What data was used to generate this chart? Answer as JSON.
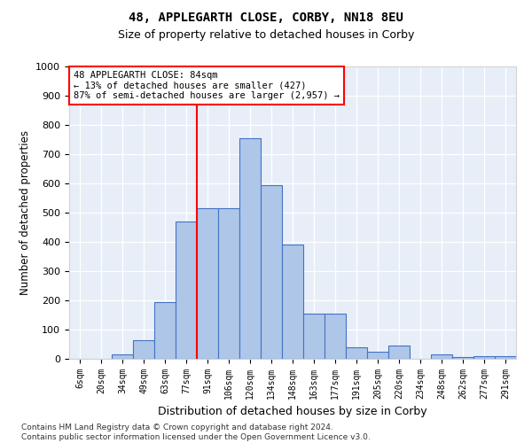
{
  "title1": "48, APPLEGARTH CLOSE, CORBY, NN18 8EU",
  "title2": "Size of property relative to detached houses in Corby",
  "xlabel": "Distribution of detached houses by size in Corby",
  "ylabel": "Number of detached properties",
  "footnote": "Contains HM Land Registry data © Crown copyright and database right 2024.\nContains public sector information licensed under the Open Government Licence v3.0.",
  "categories": [
    "6sqm",
    "20sqm",
    "34sqm",
    "49sqm",
    "63sqm",
    "77sqm",
    "91sqm",
    "106sqm",
    "120sqm",
    "134sqm",
    "148sqm",
    "163sqm",
    "177sqm",
    "191sqm",
    "205sqm",
    "220sqm",
    "234sqm",
    "248sqm",
    "262sqm",
    "277sqm",
    "291sqm"
  ],
  "values": [
    0,
    0,
    15,
    65,
    195,
    470,
    515,
    515,
    755,
    595,
    390,
    155,
    155,
    40,
    25,
    45,
    0,
    15,
    5,
    10,
    10
  ],
  "bar_color": "#aec6e8",
  "bar_edge_color": "#4472c4",
  "bg_color": "#e8eef8",
  "annotation_text": "48 APPLEGARTH CLOSE: 84sqm\n← 13% of detached houses are smaller (427)\n87% of semi-detached houses are larger (2,957) →",
  "vline_x": 5.5,
  "ylim": [
    0,
    1000
  ],
  "yticks": [
    0,
    100,
    200,
    300,
    400,
    500,
    600,
    700,
    800,
    900,
    1000
  ]
}
